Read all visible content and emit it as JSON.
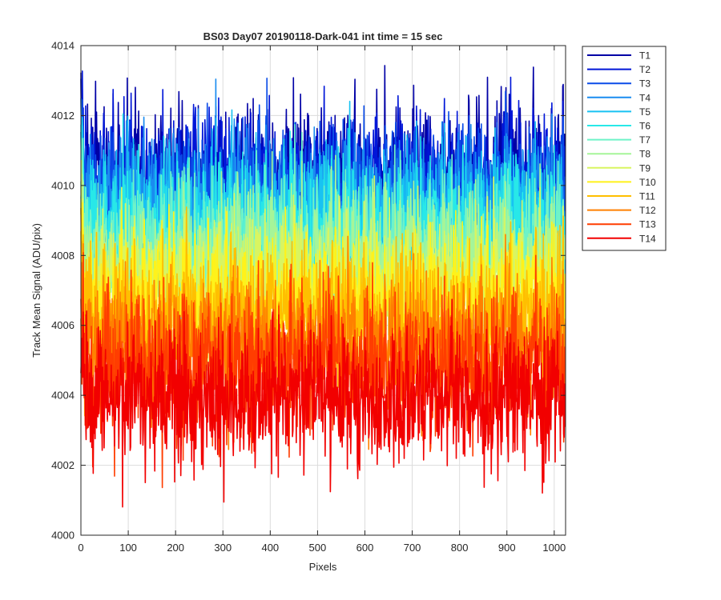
{
  "figure": {
    "background": "#ffffff",
    "title": "BS03 Day07 20190118-Dark-041 int time = 15 sec"
  },
  "chart_data": {
    "type": "line",
    "title": "BS03 Day07 20190118-Dark-041 int time = 15 sec",
    "xlabel": "Pixels",
    "ylabel": "Track Mean Signal (ADU/pix)",
    "xlim": [
      0,
      1024
    ],
    "ylim": [
      4000,
      4014
    ],
    "xticks": [
      0,
      100,
      200,
      300,
      400,
      500,
      600,
      700,
      800,
      900,
      1000
    ],
    "yticks": [
      4000,
      4002,
      4004,
      4006,
      4008,
      4010,
      4012,
      4014
    ],
    "grid": true,
    "legend_position": "outside-top-right",
    "points_per_series": 1024,
    "noise_amplitude_approx": 1.6,
    "series": [
      {
        "name": "T1",
        "color": "#0000a6",
        "approx_mean": 4010.3
      },
      {
        "name": "T2",
        "color": "#0016d8",
        "approx_mean": 4010.1
      },
      {
        "name": "T3",
        "color": "#0a4ce8",
        "approx_mean": 4009.8
      },
      {
        "name": "T4",
        "color": "#1a8cf0",
        "approx_mean": 4009.5
      },
      {
        "name": "T5",
        "color": "#18c2f2",
        "approx_mean": 4009.1
      },
      {
        "name": "T6",
        "color": "#28e8e8",
        "approx_mean": 4008.7
      },
      {
        "name": "T7",
        "color": "#6ef3c8",
        "approx_mean": 4008.3
      },
      {
        "name": "T8",
        "color": "#a6f598",
        "approx_mean": 4007.8
      },
      {
        "name": "T9",
        "color": "#d9f560",
        "approx_mean": 4007.3
      },
      {
        "name": "T10",
        "color": "#fff21a",
        "approx_mean": 4006.8
      },
      {
        "name": "T11",
        "color": "#ffbf00",
        "approx_mean": 4006.2
      },
      {
        "name": "T12",
        "color": "#ff8000",
        "approx_mean": 4005.5
      },
      {
        "name": "T13",
        "color": "#ff3d00",
        "approx_mean": 4004.8
      },
      {
        "name": "T14",
        "color": "#f20000",
        "approx_mean": 4003.9
      }
    ]
  }
}
